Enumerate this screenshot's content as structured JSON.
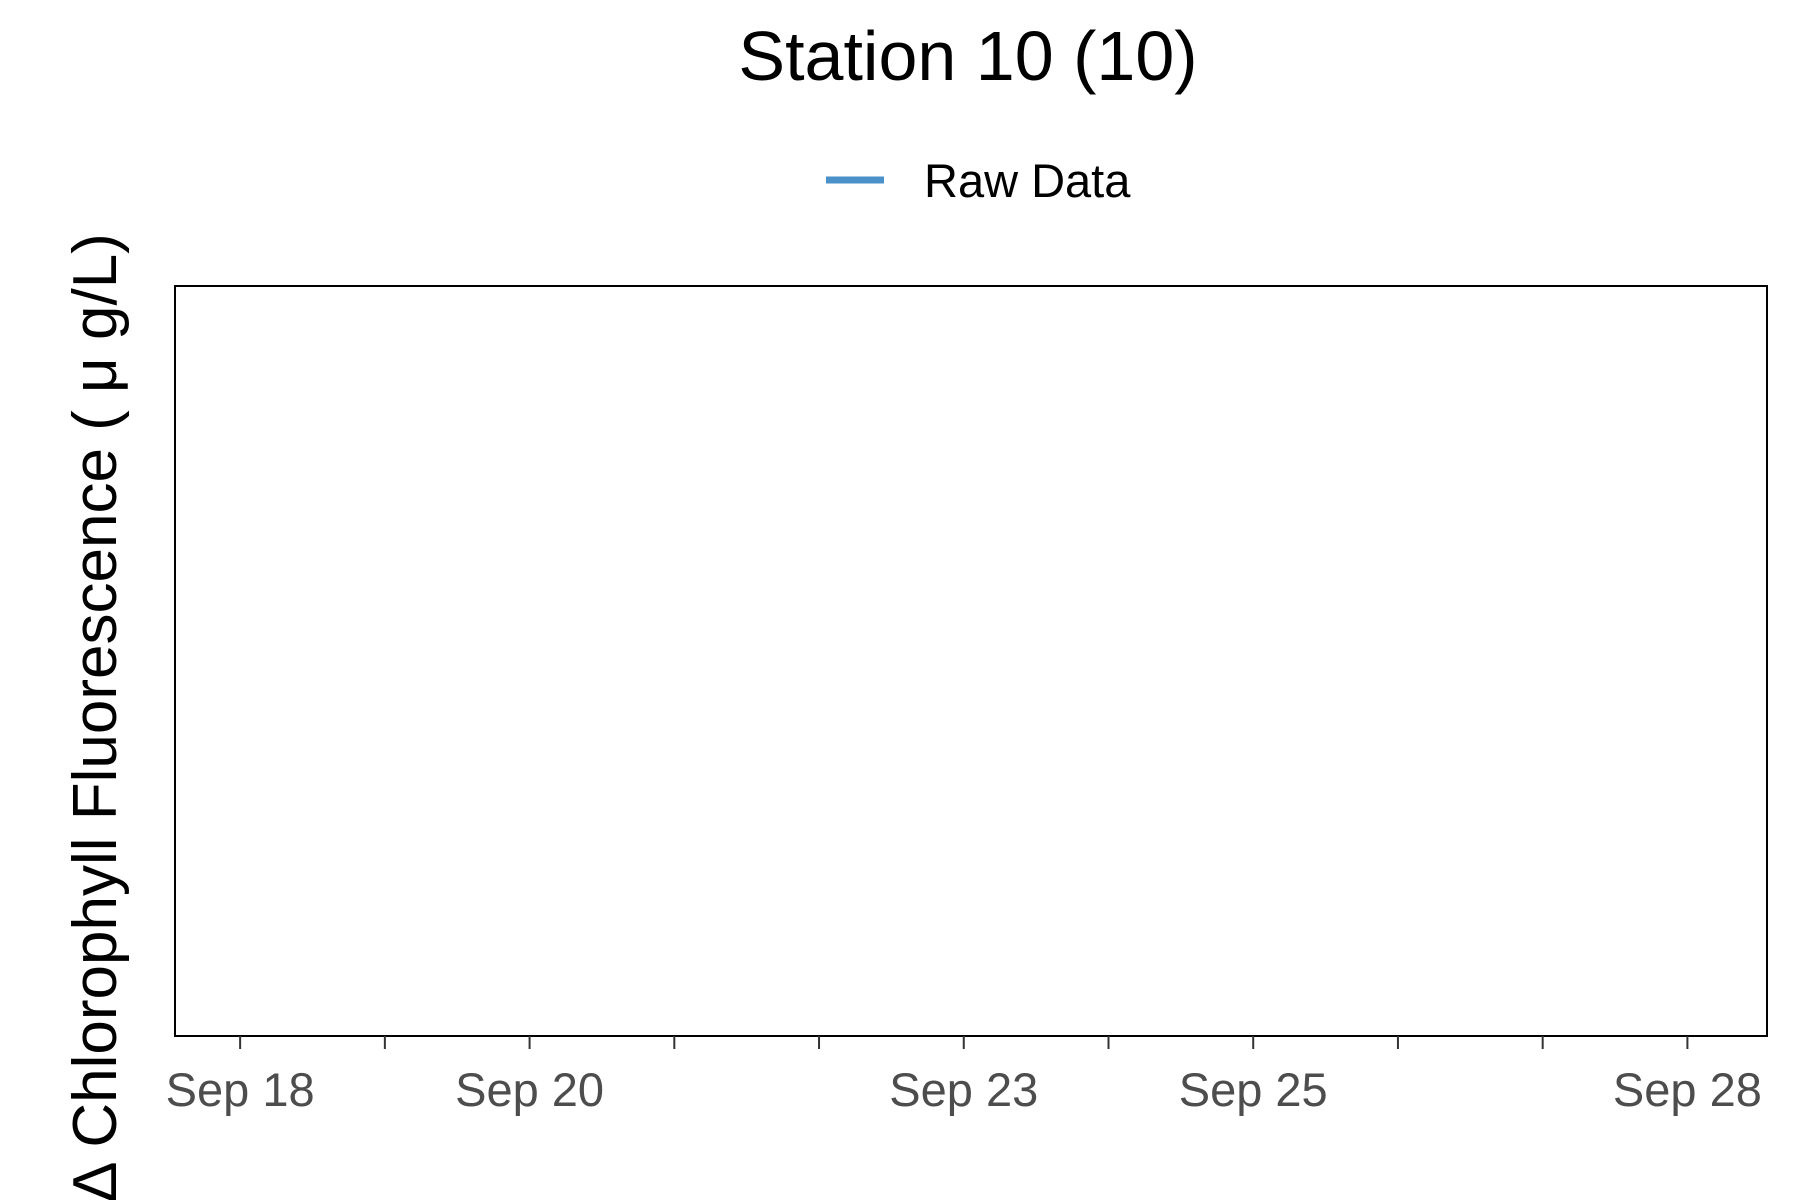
{
  "chart_data": {
    "type": "line",
    "title": "Station 10 (10)",
    "xlabel": "",
    "ylabel": "Δ Chlorophyll Fluorescence ( μ g/L)",
    "x_tick_labels": [
      "Sep 18",
      "Sep 20",
      "Sep 23",
      "Sep 25",
      "Sep 28"
    ],
    "x_tick_dates": [
      "Sep 18",
      "Sep 20",
      "Sep 23",
      "Sep 25",
      "Sep 28"
    ],
    "x_minor_tick_dates": [
      "Sep 19",
      "Sep 21",
      "Sep 22",
      "Sep 24",
      "Sep 26",
      "Sep 27"
    ],
    "xlim": [
      "Sep 17.55",
      "Sep 28.55"
    ],
    "ylim": null,
    "grid": false,
    "legend": {
      "placement": "top",
      "entries": [
        {
          "name": "Raw Data",
          "color": "#4a90c9"
        }
      ]
    },
    "series": [
      {
        "name": "Raw Data",
        "color": "#4a90c9",
        "points": []
      }
    ]
  }
}
